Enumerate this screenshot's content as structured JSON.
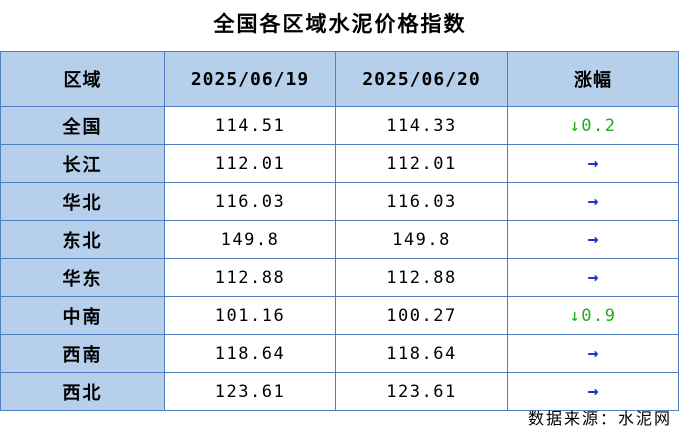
{
  "title": "全国各区域水泥价格指数",
  "headers": {
    "region": "区域",
    "date1": "2025/06/19",
    "date2": "2025/06/20",
    "change": "涨幅"
  },
  "rows": [
    {
      "region": "全国",
      "v1": "114.51",
      "v2": "114.33",
      "change_icon": "↓",
      "change_value": "0.2",
      "trend": "down"
    },
    {
      "region": "长江",
      "v1": "112.01",
      "v2": "112.01",
      "change_icon": "→",
      "change_value": "",
      "trend": "flat"
    },
    {
      "region": "华北",
      "v1": "116.03",
      "v2": "116.03",
      "change_icon": "→",
      "change_value": "",
      "trend": "flat"
    },
    {
      "region": "东北",
      "v1": "149.8",
      "v2": "149.8",
      "change_icon": "→",
      "change_value": "",
      "trend": "flat"
    },
    {
      "region": "华东",
      "v1": "112.88",
      "v2": "112.88",
      "change_icon": "→",
      "change_value": "",
      "trend": "flat"
    },
    {
      "region": "中南",
      "v1": "101.16",
      "v2": "100.27",
      "change_icon": "↓",
      "change_value": "0.9",
      "trend": "down"
    },
    {
      "region": "西南",
      "v1": "118.64",
      "v2": "118.64",
      "change_icon": "→",
      "change_value": "",
      "trend": "flat"
    },
    {
      "region": "西北",
      "v1": "123.61",
      "v2": "123.61",
      "change_icon": "→",
      "change_value": "",
      "trend": "flat"
    }
  ],
  "colors": {
    "header_bg": "#b6d0ec",
    "border": "#4f7fc0",
    "down": "#22aa22",
    "flat": "#1f2fd6"
  },
  "source": "数据来源：水泥网"
}
